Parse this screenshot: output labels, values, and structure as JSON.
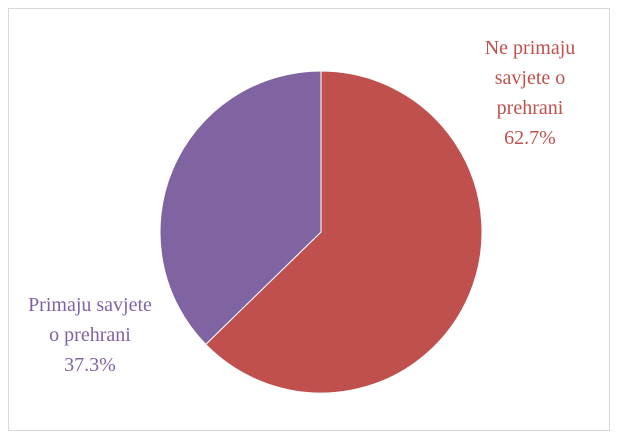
{
  "chart_data": {
    "type": "pie",
    "categories": [
      "Ne primaju savjete o prehrani",
      "Primaju savjete o prehrani"
    ],
    "values": [
      62.7,
      37.3
    ],
    "value_labels": [
      "62.7%",
      "37.3%"
    ],
    "colors": [
      "#c0504d",
      "#8064a2"
    ]
  }
}
